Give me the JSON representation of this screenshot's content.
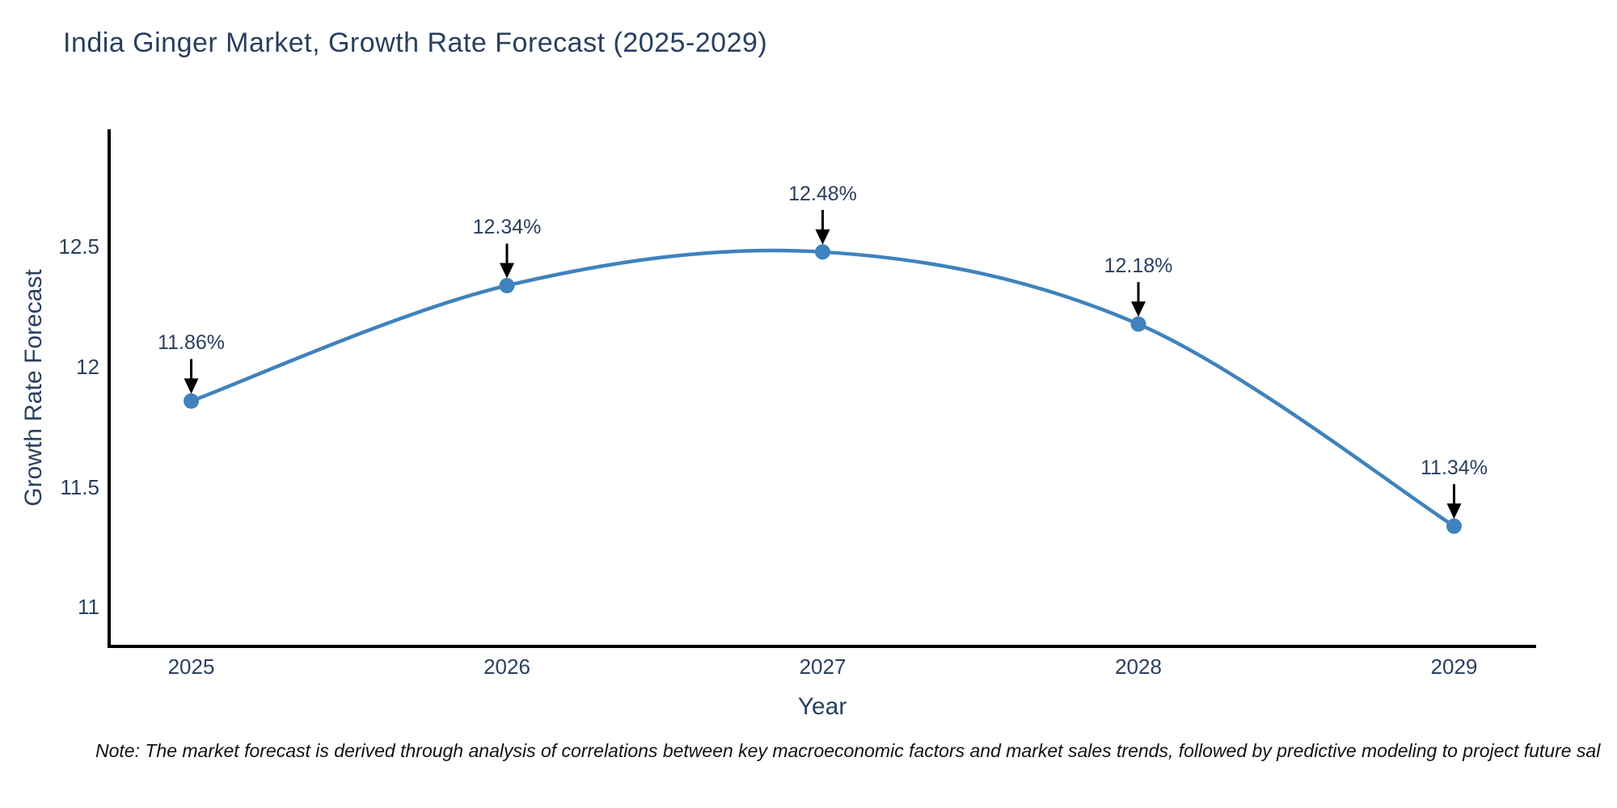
{
  "note": {
    "text": "Note: The market forecast is derived through analysis of correlations between key macroeconomic factors and market sales trends, followed by predictive modeling to project future sal"
  },
  "chart_data": {
    "type": "line",
    "title": "India Ginger Market, Growth Rate Forecast (2025-2029)",
    "xlabel": "Year",
    "ylabel": "Growth Rate Forecast",
    "x": [
      2025,
      2026,
      2027,
      2028,
      2029
    ],
    "values": [
      11.86,
      12.34,
      12.48,
      12.18,
      11.34
    ],
    "point_labels": [
      "11.86%",
      "12.34%",
      "12.48%",
      "12.18%",
      "11.34%"
    ],
    "xticks": [
      "2025",
      "2026",
      "2027",
      "2028",
      "2029"
    ],
    "xtick_values": [
      2025,
      2026,
      2027,
      2028,
      2029
    ],
    "yticks": [
      "11",
      "11.5",
      "12",
      "12.5"
    ],
    "ytick_values": [
      11,
      11.5,
      12,
      12.5
    ],
    "xlim": [
      2024.74,
      2029.26
    ],
    "ylim": [
      10.84,
      12.99
    ],
    "line_shape": "spline",
    "grid": false,
    "legend": "none",
    "colors": {
      "line": "#3f82bd",
      "marker": "#3f82bd",
      "arrow": "#000000",
      "axis": "#000000",
      "text": "#2a3f5f"
    }
  }
}
